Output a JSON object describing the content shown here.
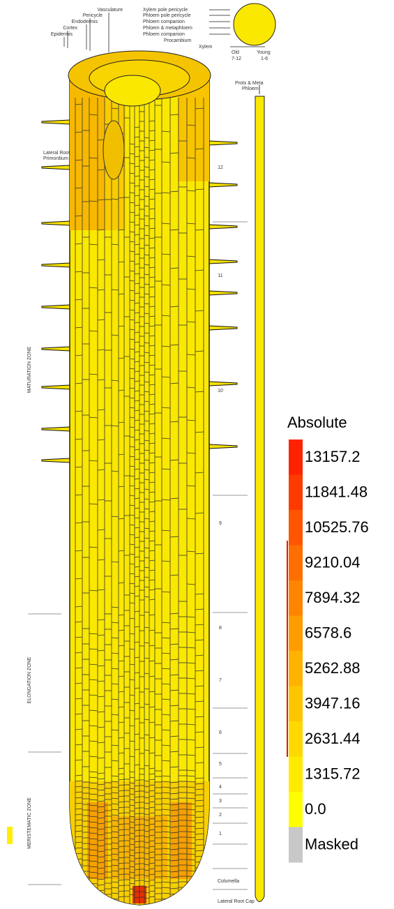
{
  "labels": {
    "tissues": [
      "Vasculature",
      "Pericycle",
      "Endodermis",
      "Cortex",
      "Epidermis"
    ],
    "stele": [
      "Xylem pole pericycle",
      "Phloem pole pericycle",
      "Phloem companion",
      "Phloem & metaphloem",
      "Phloem companion",
      "Procambium",
      "Xylem"
    ],
    "cross_section": [
      "Old",
      "Young",
      "7-12",
      "1-6"
    ],
    "strip": [
      "Protx & Meta",
      "Phloem"
    ],
    "primordium": [
      "Lateral Root",
      "Primordium"
    ],
    "zones": [
      "MATURATION ZONE",
      "ELONGATION ZONE",
      "MERISTEMATIC ZONE"
    ],
    "sections": [
      "12",
      "11",
      "10",
      "9",
      "8",
      "7",
      "6",
      "5",
      "4",
      "3",
      "2",
      "1"
    ],
    "bottom": [
      "Columella",
      "Lateral Root Cap"
    ]
  },
  "legend": {
    "title": "Absolute",
    "items": [
      {
        "label": "13157.2",
        "color": "#ff2200"
      },
      {
        "label": "11841.48",
        "color": "#ff3a00"
      },
      {
        "label": "10525.76",
        "color": "#ff5500"
      },
      {
        "label": "9210.04",
        "color": "#ff6e00"
      },
      {
        "label": "7894.32",
        "color": "#ff8500"
      },
      {
        "label": "6578.6",
        "color": "#ff9c00"
      },
      {
        "label": "5262.88",
        "color": "#ffb200"
      },
      {
        "label": "3947.16",
        "color": "#ffc600"
      },
      {
        "label": "2631.44",
        "color": "#ffd800"
      },
      {
        "label": "1315.72",
        "color": "#ffea00"
      },
      {
        "label": "0.0",
        "color": "#ffff00"
      },
      {
        "label": "Masked",
        "color": "#c8c8c8"
      }
    ]
  }
}
